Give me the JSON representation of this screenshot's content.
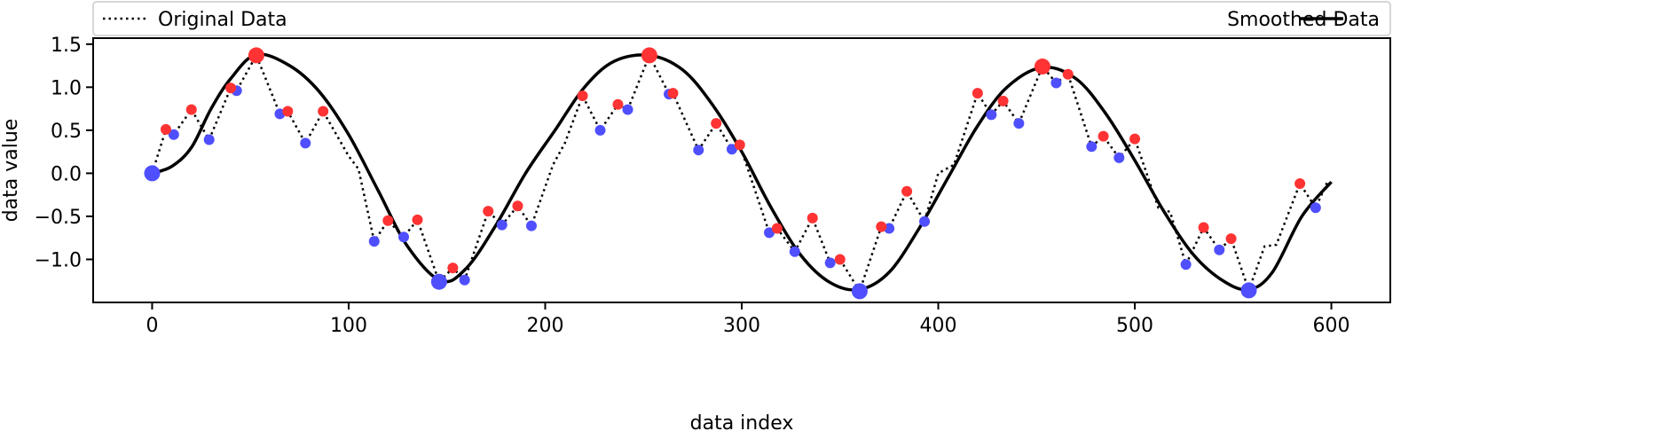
{
  "chart_data": {
    "type": "line",
    "title": "",
    "xlabel": "data index",
    "ylabel": "data value",
    "xlim": [
      -30,
      630
    ],
    "ylim": [
      -1.5,
      1.57
    ],
    "xticks": [
      0,
      100,
      200,
      300,
      400,
      500,
      600
    ],
    "xtick_labels": [
      "0",
      "100",
      "200",
      "300",
      "400",
      "500",
      "600"
    ],
    "yticks": [
      -1.0,
      -0.5,
      0.0,
      0.5,
      1.0,
      1.5
    ],
    "ytick_labels": [
      "−1.0",
      "−0.5",
      "0.0",
      "0.5",
      "1.0",
      "1.5"
    ],
    "grid": false,
    "legend_placement": "top, above plot",
    "colors": {
      "max_points": "#ff3333",
      "min_points": "#4f4fff",
      "lines": "#000000"
    },
    "series": [
      {
        "name": "Original Data",
        "style": "dotted",
        "x": [
          0,
          7,
          11,
          20,
          29,
          40,
          43,
          53,
          65,
          69,
          78,
          87,
          100,
          105,
          113,
          120,
          128,
          135,
          146,
          153,
          159,
          171,
          178,
          186,
          193,
          204,
          210,
          219,
          228,
          237,
          242,
          253,
          263,
          265,
          278,
          287,
          295,
          299,
          314,
          318,
          327,
          336,
          345,
          350,
          360,
          371,
          375,
          384,
          393,
          400,
          408,
          420,
          427,
          433,
          441,
          453,
          460,
          466,
          478,
          484,
          492,
          500,
          512,
          518,
          526,
          535,
          543,
          549,
          558,
          566,
          572,
          584,
          592,
          598
        ],
        "y": [
          0,
          0.51,
          0.45,
          0.74,
          0.39,
          0.99,
          0.96,
          1.37,
          0.69,
          0.72,
          0.35,
          0.72,
          0.2,
          0.05,
          -0.79,
          -0.55,
          -0.74,
          -0.54,
          -1.26,
          -1.1,
          -1.24,
          -0.44,
          -0.6,
          -0.38,
          -0.61,
          0.1,
          0.35,
          0.9,
          0.5,
          0.8,
          0.74,
          1.37,
          0.92,
          0.93,
          0.27,
          0.58,
          0.28,
          0.33,
          -0.69,
          -0.64,
          -0.91,
          -0.52,
          -1.04,
          -1.0,
          -1.37,
          -0.62,
          -0.64,
          -0.21,
          -0.56,
          0.0,
          0.1,
          0.93,
          0.68,
          0.84,
          0.58,
          1.24,
          1.05,
          1.15,
          0.31,
          0.43,
          0.18,
          0.4,
          -0.4,
          -0.45,
          -1.06,
          -0.63,
          -0.89,
          -0.76,
          -1.36,
          -0.85,
          -0.83,
          -0.12,
          -0.4,
          -0.1
        ]
      },
      {
        "name": "Smoothed Data",
        "style": "solid",
        "x": [
          0,
          10,
          20,
          30,
          40,
          53,
          70,
          85,
          100,
          115,
          130,
          147,
          160,
          175,
          190,
          205,
          220,
          235,
          253,
          270,
          285,
          300,
          315,
          330,
          345,
          360,
          375,
          390,
          405,
          420,
          435,
          453,
          470,
          485,
          500,
          515,
          530,
          545,
          558,
          570,
          585,
          600
        ],
        "y": [
          0.0,
          0.08,
          0.3,
          0.75,
          1.1,
          1.38,
          1.25,
          0.95,
          0.45,
          -0.2,
          -0.85,
          -1.25,
          -1.1,
          -0.6,
          0.0,
          0.5,
          1.0,
          1.3,
          1.37,
          1.2,
          0.8,
          0.25,
          -0.4,
          -0.95,
          -1.27,
          -1.35,
          -1.15,
          -0.65,
          -0.05,
          0.55,
          1.0,
          1.23,
          1.1,
          0.7,
          0.15,
          -0.45,
          -0.95,
          -1.25,
          -1.35,
          -1.15,
          -0.5,
          -0.1
        ]
      }
    ],
    "max_points": {
      "x": [
        7,
        20,
        40,
        69,
        87,
        120,
        135,
        153,
        171,
        186,
        219,
        237,
        265,
        287,
        299,
        318,
        336,
        350,
        371,
        384,
        420,
        433,
        466,
        484,
        500,
        535,
        549,
        584
      ],
      "y": [
        0.51,
        0.74,
        0.99,
        0.72,
        0.72,
        -0.55,
        -0.54,
        -1.1,
        -0.44,
        -0.38,
        0.9,
        0.8,
        0.93,
        0.58,
        0.33,
        -0.64,
        -0.52,
        -1.0,
        -0.62,
        -0.21,
        0.93,
        0.84,
        1.15,
        0.43,
        0.4,
        -0.63,
        -0.76,
        -0.12
      ]
    },
    "global_max_points": {
      "x": [
        53,
        253,
        453
      ],
      "y": [
        1.37,
        1.37,
        1.24
      ]
    },
    "min_points": {
      "x": [
        11,
        29,
        43,
        65,
        78,
        113,
        128,
        159,
        178,
        193,
        228,
        242,
        263,
        278,
        295,
        314,
        327,
        345,
        375,
        393,
        427,
        441,
        460,
        478,
        492,
        526,
        543,
        592
      ],
      "y": [
        0.45,
        0.39,
        0.96,
        0.69,
        0.35,
        -0.79,
        -0.74,
        -1.24,
        -0.6,
        -0.61,
        0.5,
        0.74,
        0.92,
        0.27,
        0.28,
        -0.69,
        -0.91,
        -1.04,
        -0.64,
        -0.56,
        0.68,
        0.58,
        1.05,
        0.31,
        0.18,
        -1.06,
        -0.89,
        -0.4
      ]
    },
    "global_min_points": {
      "x": [
        0,
        146,
        360,
        558
      ],
      "y": [
        0,
        -1.26,
        -1.37,
        -1.36
      ]
    }
  }
}
